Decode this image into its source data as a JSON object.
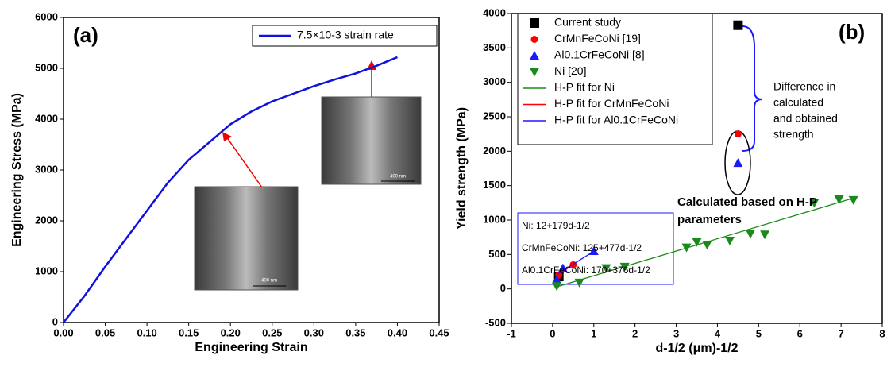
{
  "chart_data": [
    {
      "type": "line",
      "panel_label": "(a)",
      "x_label": "Engineering Strain",
      "y_label": "Engineering Stress (MPa)",
      "x": [
        0,
        0.025,
        0.05,
        0.075,
        0.1,
        0.125,
        0.15,
        0.175,
        0.2,
        0.225,
        0.25,
        0.275,
        0.3,
        0.325,
        0.35,
        0.375,
        0.4
      ],
      "series": [
        {
          "name": "7.5×10-3 strain rate",
          "color": "#1010e0",
          "values": [
            0,
            520,
            1100,
            1650,
            2200,
            2750,
            3200,
            3550,
            3900,
            4150,
            4350,
            4500,
            4650,
            4780,
            4900,
            5050,
            5220
          ]
        }
      ],
      "xlim": [
        0,
        0.45
      ],
      "ylim": [
        0,
        6000
      ],
      "xticks": [
        {
          "value": 0,
          "label": "0.00"
        },
        0.05,
        {
          "value": 0.1,
          "label": "0.10"
        },
        0.15,
        {
          "value": 0.2,
          "label": "0.20"
        },
        0.25,
        {
          "value": 0.3,
          "label": "0.30"
        },
        0.35,
        {
          "value": 0.4,
          "label": "0.40"
        },
        0.45
      ],
      "yticks": [
        0,
        1000,
        2000,
        3000,
        4000,
        5000,
        6000
      ],
      "annotations": [
        "400 nm",
        "400 nm"
      ]
    },
    {
      "type": "scatter",
      "panel_label": "(b)",
      "x_label": "d-1/2 (μm)-1/2",
      "y_label": "Yield strength (MPa)",
      "series": [
        {
          "name": "Current study",
          "color": "#000000",
          "marker": "square",
          "x": [
            4.5,
            0.15
          ],
          "values": [
            3830,
            180
          ]
        },
        {
          "name": "CrMnFeCoNi [19]",
          "color": "#ff0000",
          "marker": "circle",
          "x": [
            4.5,
            0.5,
            0.15
          ],
          "values": [
            2250,
            350,
            200
          ]
        },
        {
          "name": "Al0.1CrFeCoNi [8]",
          "color": "#1a1aff",
          "marker": "triangle-up",
          "x": [
            4.5,
            1.0,
            0.25,
            0.1
          ],
          "values": [
            1830,
            550,
            300,
            130
          ]
        },
        {
          "name": "Ni [20]",
          "color": "#1a8a1a",
          "marker": "triangle-down",
          "x": [
            0.1,
            0.65,
            1.3,
            1.75,
            3.25,
            3.5,
            3.75,
            4.3,
            4.8,
            5.15,
            6.35,
            6.95,
            7.3
          ],
          "values": [
            40,
            90,
            300,
            320,
            600,
            680,
            640,
            700,
            800,
            790,
            1250,
            1300,
            1290
          ]
        },
        {
          "name": "H-P fit for Ni",
          "color": "#1a8a1a",
          "marker": "line",
          "x": [
            0.1,
            7.3
          ],
          "values": [
            30,
            1319
          ]
        },
        {
          "name": "H-P fit for CrMnFeCoNi",
          "color": "#ff0000",
          "marker": "line",
          "x": [
            0.15,
            0.5
          ],
          "values": [
            197,
            364
          ]
        },
        {
          "name": "H-P fit for Al0.1CrFeCoNi",
          "color": "#1a1aff",
          "marker": "line",
          "x": [
            0.1,
            1.0
          ],
          "values": [
            208,
            546
          ]
        }
      ],
      "xlim": [
        -1,
        8
      ],
      "ylim": [
        -500,
        4000
      ],
      "xticks": [
        -1,
        0,
        1,
        2,
        3,
        4,
        5,
        6,
        7,
        8
      ],
      "yticks": [
        -500,
        0,
        500,
        1000,
        1500,
        2000,
        2500,
        3000,
        3500,
        4000
      ],
      "equations": [
        "Ni: 12+179d-1/2",
        "CrMnFeCoNi: 125+477d-1/2",
        "Al0.1CrFeCoNi: 170+376d-1/2"
      ],
      "difference_note": [
        "Difference in",
        "calculated",
        "and obtained",
        "strength"
      ],
      "calculated_note": [
        "Calculated based on H-P",
        "parameters"
      ]
    }
  ]
}
